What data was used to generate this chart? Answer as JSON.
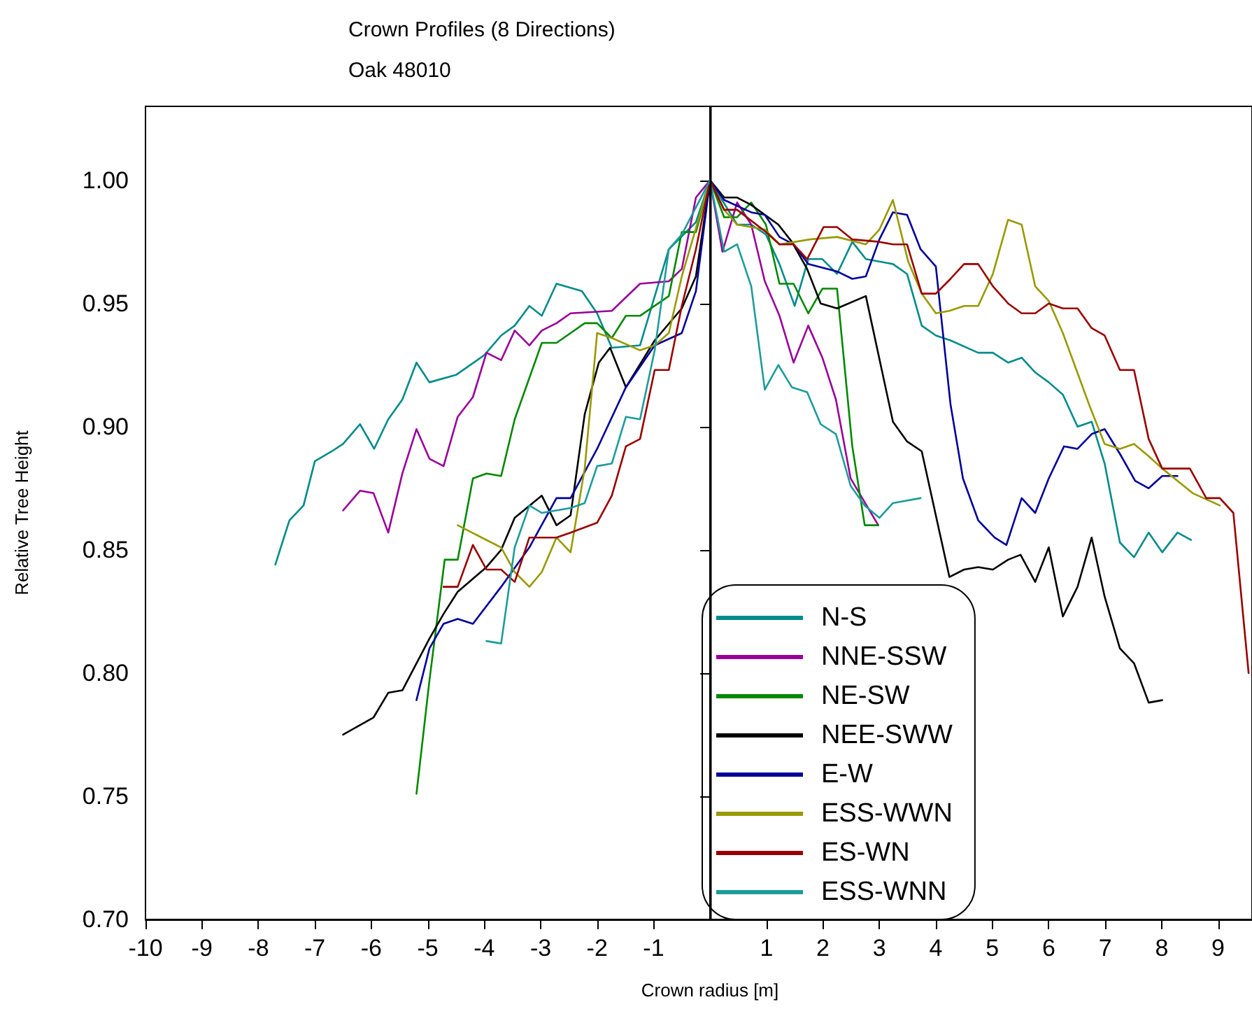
{
  "chart_data": {
    "type": "line",
    "title": "Crown Profiles (8 Directions)",
    "subtitle": "Oak 48010",
    "xlabel": "Crown radius [m]",
    "ylabel": "Relative Tree Height",
    "xlim": [
      -10,
      9.6
    ],
    "xticks": [
      -10,
      -9,
      -8,
      -7,
      -6,
      -5,
      -4,
      -3,
      -2,
      -1,
      1,
      2,
      3,
      4,
      5,
      6,
      7,
      8,
      9
    ],
    "ylim": [
      0.7,
      1.03
    ],
    "yticks": [
      {
        "value": 0.7,
        "label": "0.70"
      },
      {
        "value": 0.75,
        "label": "0.75"
      },
      {
        "value": 0.8,
        "label": "0.80"
      },
      {
        "value": 0.85,
        "label": "0.85"
      },
      {
        "value": 0.9,
        "label": "0.90"
      },
      {
        "value": 0.95,
        "label": "0.95"
      },
      {
        "value": 1.0,
        "label": "1.00"
      }
    ],
    "grid": false,
    "legend": "bottom right",
    "marker": "none",
    "ref_lines": [
      {
        "axis": "x",
        "value": 0,
        "label": null,
        "color": "#000000"
      }
    ],
    "series": [
      {
        "name": "N-S",
        "color": "#008b8b",
        "x": [
          -7.7,
          -7.45,
          -7.2,
          -7.0,
          -6.7,
          -6.5,
          -6.2,
          -5.95,
          -5.7,
          -5.45,
          -5.2,
          -4.97,
          -4.5,
          -4.0,
          -3.7,
          -3.46,
          -3.2,
          -2.98,
          -2.72,
          -2.27,
          -2.0,
          -1.74,
          -1.24,
          -0.73,
          -0.25,
          0,
          0.48,
          0.73,
          0.99,
          1.23,
          1.5,
          1.74,
          1.99,
          2.25,
          2.52,
          2.76,
          3.24,
          3.49,
          3.75,
          4.0,
          4.26,
          4.75,
          5.01,
          5.28,
          5.52,
          5.76,
          6.0,
          6.25,
          6.51,
          6.76,
          6.99,
          7.26,
          7.51,
          7.77,
          8.01,
          8.28,
          8.52
        ],
        "values": [
          0.844,
          0.862,
          0.868,
          0.886,
          0.89,
          0.893,
          0.901,
          0.891,
          0.903,
          0.911,
          0.926,
          0.918,
          0.921,
          0.929,
          0.937,
          0.941,
          0.949,
          0.945,
          0.958,
          0.955,
          0.946,
          0.932,
          0.933,
          0.972,
          0.983,
          1.0,
          0.982,
          0.982,
          0.978,
          0.966,
          0.949,
          0.968,
          0.968,
          0.962,
          0.975,
          0.968,
          0.966,
          0.962,
          0.941,
          0.937,
          0.935,
          0.93,
          0.93,
          0.926,
          0.928,
          0.922,
          0.918,
          0.913,
          0.9,
          0.902,
          0.885,
          0.853,
          0.847,
          0.857,
          0.849,
          0.857,
          0.854
        ]
      },
      {
        "name": "NNE-SSW",
        "color": "#990099",
        "x": [
          -6.5,
          -6.2,
          -5.96,
          -5.7,
          -5.45,
          -5.2,
          -4.97,
          -4.72,
          -4.47,
          -4.2,
          -3.96,
          -3.7,
          -3.46,
          -3.2,
          -2.98,
          -2.72,
          -2.47,
          -1.74,
          -1.24,
          -0.73,
          -0.5,
          -0.25,
          0,
          0.22,
          0.48,
          0.73,
          0.97,
          1.23,
          1.48,
          1.74,
          1.99,
          2.23,
          2.49,
          2.98
        ],
        "values": [
          0.866,
          0.874,
          0.873,
          0.857,
          0.881,
          0.899,
          0.887,
          0.884,
          0.904,
          0.912,
          0.93,
          0.927,
          0.939,
          0.933,
          0.939,
          0.942,
          0.946,
          0.947,
          0.958,
          0.959,
          0.964,
          0.993,
          1.0,
          0.971,
          0.991,
          0.982,
          0.959,
          0.945,
          0.926,
          0.941,
          0.928,
          0.911,
          0.879,
          0.86
        ]
      },
      {
        "name": "NE-SW",
        "color": "#008800",
        "x": [
          -5.2,
          -4.97,
          -4.7,
          -4.47,
          -4.2,
          -3.96,
          -3.7,
          -3.46,
          -2.98,
          -2.72,
          -2.47,
          -2.22,
          -2.0,
          -1.74,
          -1.49,
          -1.24,
          -0.73,
          -0.5,
          -0.25,
          0,
          0.25,
          0.48,
          0.73,
          0.99,
          1.23,
          1.48,
          1.74,
          1.99,
          2.25,
          2.52,
          2.74,
          2.98
        ],
        "values": [
          0.751,
          0.797,
          0.846,
          0.846,
          0.879,
          0.881,
          0.88,
          0.903,
          0.934,
          0.934,
          0.938,
          0.942,
          0.942,
          0.936,
          0.945,
          0.945,
          0.953,
          0.979,
          0.979,
          1.0,
          0.985,
          0.985,
          0.991,
          0.982,
          0.958,
          0.958,
          0.946,
          0.956,
          0.956,
          0.892,
          0.86,
          0.86
        ]
      },
      {
        "name": "NEE-SWW",
        "color": "#000000",
        "x": [
          -6.5,
          -5.96,
          -5.7,
          -5.45,
          -4.97,
          -4.72,
          -4.47,
          -3.96,
          -3.7,
          -3.46,
          -2.98,
          -2.72,
          -2.47,
          -2.22,
          -1.97,
          -1.77,
          -1.49,
          -0.98,
          -0.5,
          -0.25,
          0,
          0.25,
          0.48,
          0.73,
          1.21,
          1.45,
          1.72,
          1.96,
          2.25,
          2.76,
          3.24,
          3.49,
          3.75,
          4.24,
          4.5,
          4.75,
          5.01,
          5.28,
          5.5,
          5.76,
          6.0,
          6.25,
          6.51,
          6.76,
          6.99,
          7.26,
          7.51,
          7.77,
          8.01
        ],
        "values": [
          0.775,
          0.782,
          0.792,
          0.793,
          0.814,
          0.824,
          0.833,
          0.843,
          0.85,
          0.863,
          0.872,
          0.86,
          0.864,
          0.905,
          0.926,
          0.932,
          0.916,
          0.935,
          0.948,
          0.961,
          1.0,
          0.993,
          0.993,
          0.99,
          0.982,
          0.975,
          0.964,
          0.95,
          0.948,
          0.953,
          0.902,
          0.894,
          0.89,
          0.839,
          0.842,
          0.843,
          0.842,
          0.846,
          0.848,
          0.837,
          0.851,
          0.823,
          0.835,
          0.855,
          0.831,
          0.81,
          0.804,
          0.788,
          0.789
        ]
      },
      {
        "name": "E-W",
        "color": "#000099",
        "x": [
          -5.2,
          -4.97,
          -4.72,
          -4.47,
          -4.2,
          -3.7,
          -3.2,
          -2.72,
          -2.47,
          -2.0,
          -1.49,
          -0.98,
          -0.5,
          -0.25,
          0,
          0.25,
          0.73,
          0.97,
          1.23,
          1.48,
          1.74,
          2.25,
          2.52,
          2.76,
          3.0,
          3.24,
          3.49,
          3.73,
          4.0,
          4.26,
          4.48,
          4.75,
          5.04,
          5.25,
          5.52,
          5.76,
          6.0,
          6.27,
          6.51,
          6.76,
          6.99,
          7.26,
          7.53,
          7.77,
          8.01,
          8.28
        ],
        "values": [
          0.789,
          0.81,
          0.82,
          0.822,
          0.82,
          0.835,
          0.851,
          0.871,
          0.871,
          0.891,
          0.916,
          0.933,
          0.938,
          0.955,
          1.0,
          0.992,
          0.987,
          0.986,
          0.977,
          0.974,
          0.966,
          0.963,
          0.96,
          0.961,
          0.976,
          0.987,
          0.986,
          0.972,
          0.965,
          0.909,
          0.879,
          0.862,
          0.855,
          0.852,
          0.871,
          0.865,
          0.879,
          0.892,
          0.891,
          0.897,
          0.899,
          0.889,
          0.878,
          0.875,
          0.88,
          0.88
        ]
      },
      {
        "name": "ESS-WWN",
        "color": "#999900",
        "x": [
          -4.47,
          -3.96,
          -3.7,
          -3.46,
          -3.2,
          -2.98,
          -2.72,
          -2.47,
          -2.22,
          -2.0,
          -1.74,
          -1.24,
          -0.98,
          -0.73,
          -0.5,
          0,
          0.25,
          0.48,
          0.97,
          1.23,
          1.77,
          2.25,
          2.76,
          3.0,
          3.24,
          3.51,
          3.75,
          4.0,
          4.24,
          4.5,
          4.75,
          5.01,
          5.28,
          5.52,
          5.76,
          6.0,
          6.25,
          6.49,
          6.73,
          6.99,
          7.26,
          7.51,
          7.77,
          8.01,
          8.55,
          9.03
        ],
        "values": [
          0.86,
          0.854,
          0.851,
          0.841,
          0.835,
          0.841,
          0.855,
          0.849,
          0.883,
          0.938,
          0.936,
          0.931,
          0.933,
          0.938,
          0.961,
          1.0,
          0.988,
          0.982,
          0.98,
          0.974,
          0.976,
          0.977,
          0.974,
          0.98,
          0.992,
          0.967,
          0.954,
          0.946,
          0.947,
          0.949,
          0.949,
          0.962,
          0.984,
          0.982,
          0.957,
          0.951,
          0.938,
          0.923,
          0.908,
          0.893,
          0.891,
          0.893,
          0.888,
          0.883,
          0.873,
          0.868
        ]
      },
      {
        "name": "ES-WN",
        "color": "#990000",
        "x": [
          -4.72,
          -4.47,
          -4.2,
          -3.96,
          -3.7,
          -3.46,
          -3.2,
          -2.72,
          -2.47,
          -2.0,
          -1.74,
          -1.49,
          -1.24,
          -0.98,
          -0.73,
          -0.5,
          -0.25,
          0,
          0.25,
          0.48,
          0.99,
          1.23,
          1.48,
          1.72,
          2.01,
          2.25,
          2.52,
          3.0,
          3.24,
          3.49,
          3.75,
          4.0,
          4.26,
          4.5,
          4.75,
          5.01,
          5.28,
          5.52,
          5.76,
          6.0,
          6.25,
          6.51,
          6.76,
          6.99,
          7.26,
          7.51,
          7.77,
          8.01,
          8.5,
          8.79,
          9.03,
          9.27,
          9.54
        ],
        "values": [
          0.835,
          0.835,
          0.852,
          0.842,
          0.842,
          0.837,
          0.855,
          0.855,
          0.857,
          0.861,
          0.872,
          0.892,
          0.895,
          0.923,
          0.923,
          0.949,
          0.972,
          1.0,
          0.988,
          0.988,
          0.979,
          0.974,
          0.974,
          0.968,
          0.981,
          0.981,
          0.976,
          0.975,
          0.974,
          0.974,
          0.954,
          0.954,
          0.96,
          0.966,
          0.966,
          0.957,
          0.95,
          0.946,
          0.946,
          0.95,
          0.948,
          0.948,
          0.94,
          0.937,
          0.923,
          0.923,
          0.895,
          0.883,
          0.883,
          0.871,
          0.871,
          0.865,
          0.8
        ]
      },
      {
        "name": "ESS-WNN",
        "color": "#1e9b9b",
        "x": [
          -3.96,
          -3.7,
          -3.46,
          -3.2,
          -2.98,
          -2.47,
          -2.22,
          -2.0,
          -1.74,
          -1.49,
          -1.24,
          -0.98,
          -0.73,
          -0.5,
          0,
          0.25,
          0.48,
          0.73,
          0.97,
          1.21,
          1.45,
          1.72,
          1.96,
          2.23,
          2.49,
          2.74,
          3.0,
          3.24,
          3.73
        ],
        "values": [
          0.813,
          0.812,
          0.851,
          0.868,
          0.865,
          0.867,
          0.869,
          0.884,
          0.885,
          0.904,
          0.903,
          0.931,
          0.972,
          0.978,
          1.0,
          0.971,
          0.974,
          0.957,
          0.915,
          0.925,
          0.916,
          0.914,
          0.901,
          0.897,
          0.876,
          0.868,
          0.863,
          0.869,
          0.871
        ]
      }
    ]
  }
}
